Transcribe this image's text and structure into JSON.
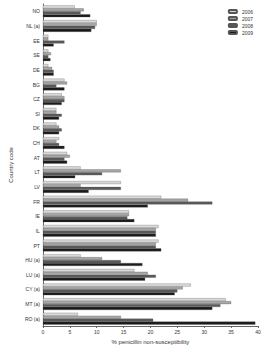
{
  "chart_data": {
    "type": "bar",
    "orientation": "horizontal",
    "grid": false,
    "legend": "top-right",
    "xlabel": "% penicillin non-susceptibility",
    "ylabel": "Country code",
    "categories": [
      "NO",
      "NL (a)",
      "EE",
      "SE",
      "DE",
      "BG",
      "CZ",
      "SI",
      "DK",
      "CH",
      "AT",
      "LT",
      "LV",
      "FR",
      "IE",
      "IL",
      "PT",
      "HU (a)",
      "LU (a)",
      "CY (a)",
      "MT (a)",
      "RO (a)"
    ],
    "series": [
      {
        "name": "2006",
        "color": "#d9d9d9",
        "values": [
          5.9,
          10,
          1,
          1,
          1,
          4,
          3.5,
          2.5,
          2.5,
          3,
          4.5,
          7,
          14.5,
          22,
          16,
          21.5,
          21.5,
          7,
          17,
          27.5,
          34,
          6.5
        ]
      },
      {
        "name": "2007",
        "color": "#a6a6a6",
        "values": [
          7.6,
          10,
          1,
          1.5,
          1.7,
          4.5,
          4,
          2.5,
          3,
          2.5,
          5,
          14.5,
          7,
          27,
          16,
          21,
          21,
          11,
          19.5,
          26,
          35,
          14.5
        ]
      },
      {
        "name": "2008",
        "color": "#595959",
        "values": [
          7,
          9.7,
          4,
          1,
          2,
          2.5,
          4,
          3.5,
          3.5,
          3,
          4,
          11,
          14.5,
          31.5,
          15.7,
          21,
          21,
          14.5,
          21,
          25,
          33,
          20.5
        ]
      },
      {
        "name": "2009",
        "color": "#1a1a1a",
        "values": [
          8.8,
          9,
          2,
          1.4,
          2,
          4,
          3.5,
          3,
          3,
          4,
          4.5,
          6,
          8.5,
          19.5,
          17,
          21,
          22,
          18.5,
          19,
          24.5,
          31.5,
          39.5
        ]
      }
    ],
    "xlim": [
      0,
      40
    ],
    "xticks": [
      0,
      5,
      10,
      15,
      20,
      25,
      30,
      35,
      40
    ]
  }
}
